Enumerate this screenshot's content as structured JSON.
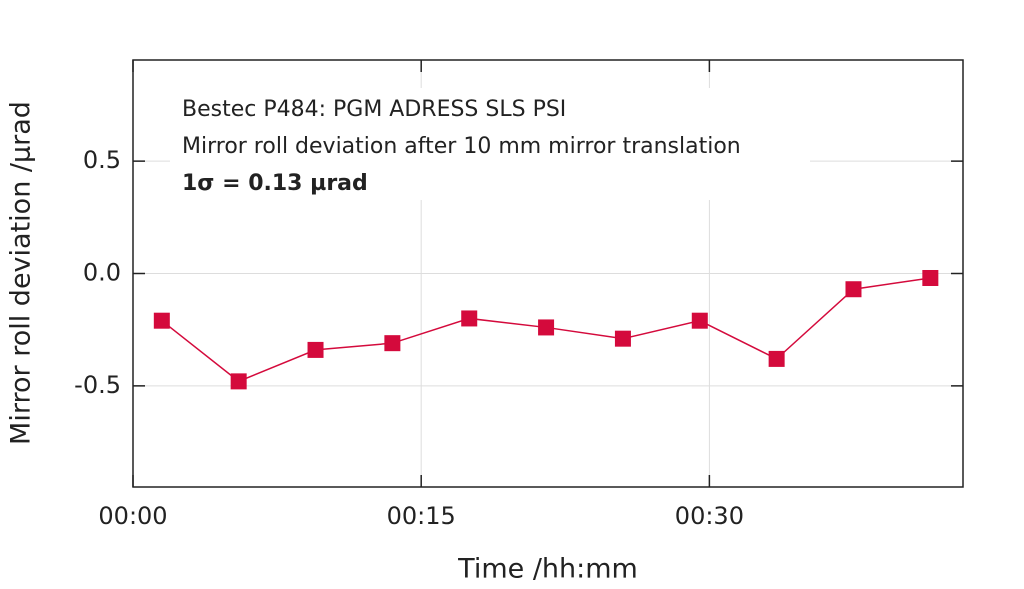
{
  "chart_data": {
    "type": "line",
    "annotations": [
      "Bestec P484: PGM ADRESS SLS PSI",
      "Mirror roll deviation after 10 mm mirror translation",
      "1σ = 0.13 µrad"
    ],
    "x_label": "Time /hh:mm",
    "y_label": "Mirror roll deviation /µrad",
    "x": [
      1.5,
      5.5,
      9.5,
      13.5,
      17.5,
      21.5,
      25.5,
      29.5,
      33.5,
      37.5,
      41.5
    ],
    "series": [
      {
        "name": "Mirror roll deviation",
        "color": "#d40a3c",
        "values": [
          -0.21,
          -0.48,
          -0.34,
          -0.31,
          -0.2,
          -0.24,
          -0.29,
          -0.21,
          -0.38,
          -0.07,
          -0.02
        ]
      }
    ],
    "xlim": [
      0,
      43.2
    ],
    "xticks": [
      {
        "value": 0,
        "label": "00:00"
      },
      {
        "value": 15,
        "label": "00:15"
      },
      {
        "value": 30,
        "label": "00:30"
      }
    ],
    "ylim": [
      -0.95,
      0.95
    ],
    "yticks": [
      {
        "value": -0.5,
        "label": "-0.5"
      },
      {
        "value": 0,
        "label": "0.0"
      },
      {
        "value": 0.5,
        "label": "0.5"
      }
    ],
    "grid": true
  }
}
